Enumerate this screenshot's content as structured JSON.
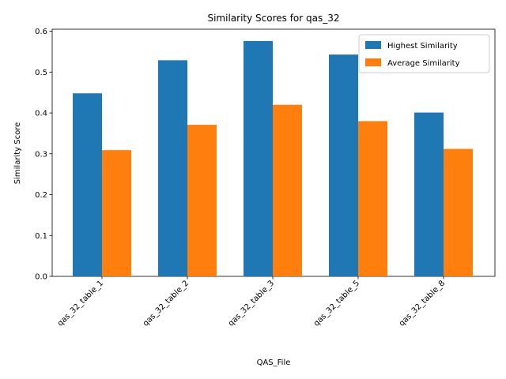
{
  "chart_data": {
    "type": "bar",
    "title": "Similarity Scores for qas_32",
    "xlabel": "QAS_File",
    "ylabel": "Similarity Score",
    "categories": [
      "qas_32_table_1",
      "qas_32_table_2",
      "qas_32_table_3",
      "qas_32_table_5",
      "qas_32_table_8"
    ],
    "series": [
      {
        "name": "Highest Similarity",
        "color": "#1f77b4",
        "values": [
          0.448,
          0.529,
          0.576,
          0.543,
          0.401
        ]
      },
      {
        "name": "Average Similarity",
        "color": "#ff7f0e",
        "values": [
          0.309,
          0.371,
          0.42,
          0.38,
          0.312
        ]
      }
    ],
    "ylim": [
      0,
      0.605
    ],
    "yticks": [
      0.0,
      0.1,
      0.2,
      0.3,
      0.4,
      0.5,
      0.6
    ],
    "ytick_labels": [
      "0.0",
      "0.1",
      "0.2",
      "0.3",
      "0.4",
      "0.5",
      "0.6"
    ],
    "grid": false,
    "legend_position": "top-right"
  }
}
